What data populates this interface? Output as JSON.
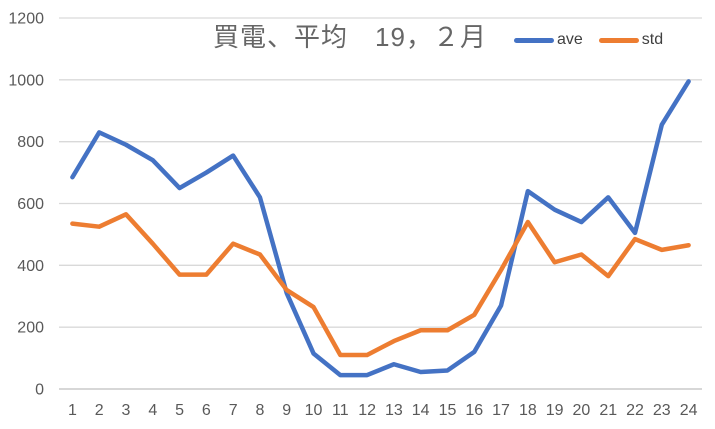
{
  "chart_data": {
    "type": "line",
    "title": "買電、平均　19，２月",
    "x_categories": [
      "1",
      "2",
      "3",
      "4",
      "5",
      "6",
      "7",
      "8",
      "9",
      "10",
      "11",
      "12",
      "13",
      "14",
      "15",
      "16",
      "17",
      "18",
      "19",
      "20",
      "21",
      "22",
      "23",
      "24"
    ],
    "series": [
      {
        "name": "ave",
        "color": "#4472C4",
        "values": [
          685,
          830,
          790,
          740,
          650,
          700,
          755,
          620,
          310,
          115,
          45,
          45,
          80,
          55,
          60,
          120,
          270,
          640,
          580,
          540,
          620,
          505,
          855,
          995
        ]
      },
      {
        "name": "std",
        "color": "#ED7D31",
        "values": [
          535,
          525,
          565,
          470,
          370,
          370,
          470,
          435,
          320,
          265,
          110,
          110,
          155,
          190,
          190,
          240,
          385,
          540,
          410,
          435,
          365,
          485,
          450,
          465
        ]
      }
    ],
    "y_ticks": [
      0,
      200,
      400,
      600,
      800,
      1000,
      1200
    ],
    "ylim": [
      0,
      1200
    ],
    "xlabel": "",
    "ylabel": "",
    "grid": "horizontal",
    "legend_position": "top-right",
    "colors": {
      "gridline": "#D9D9D9",
      "axis_line": "#BFBFBF",
      "tick_label": "#595959",
      "title_text": "#666666",
      "legend_text": "#404040",
      "background": "#FFFFFF"
    }
  }
}
